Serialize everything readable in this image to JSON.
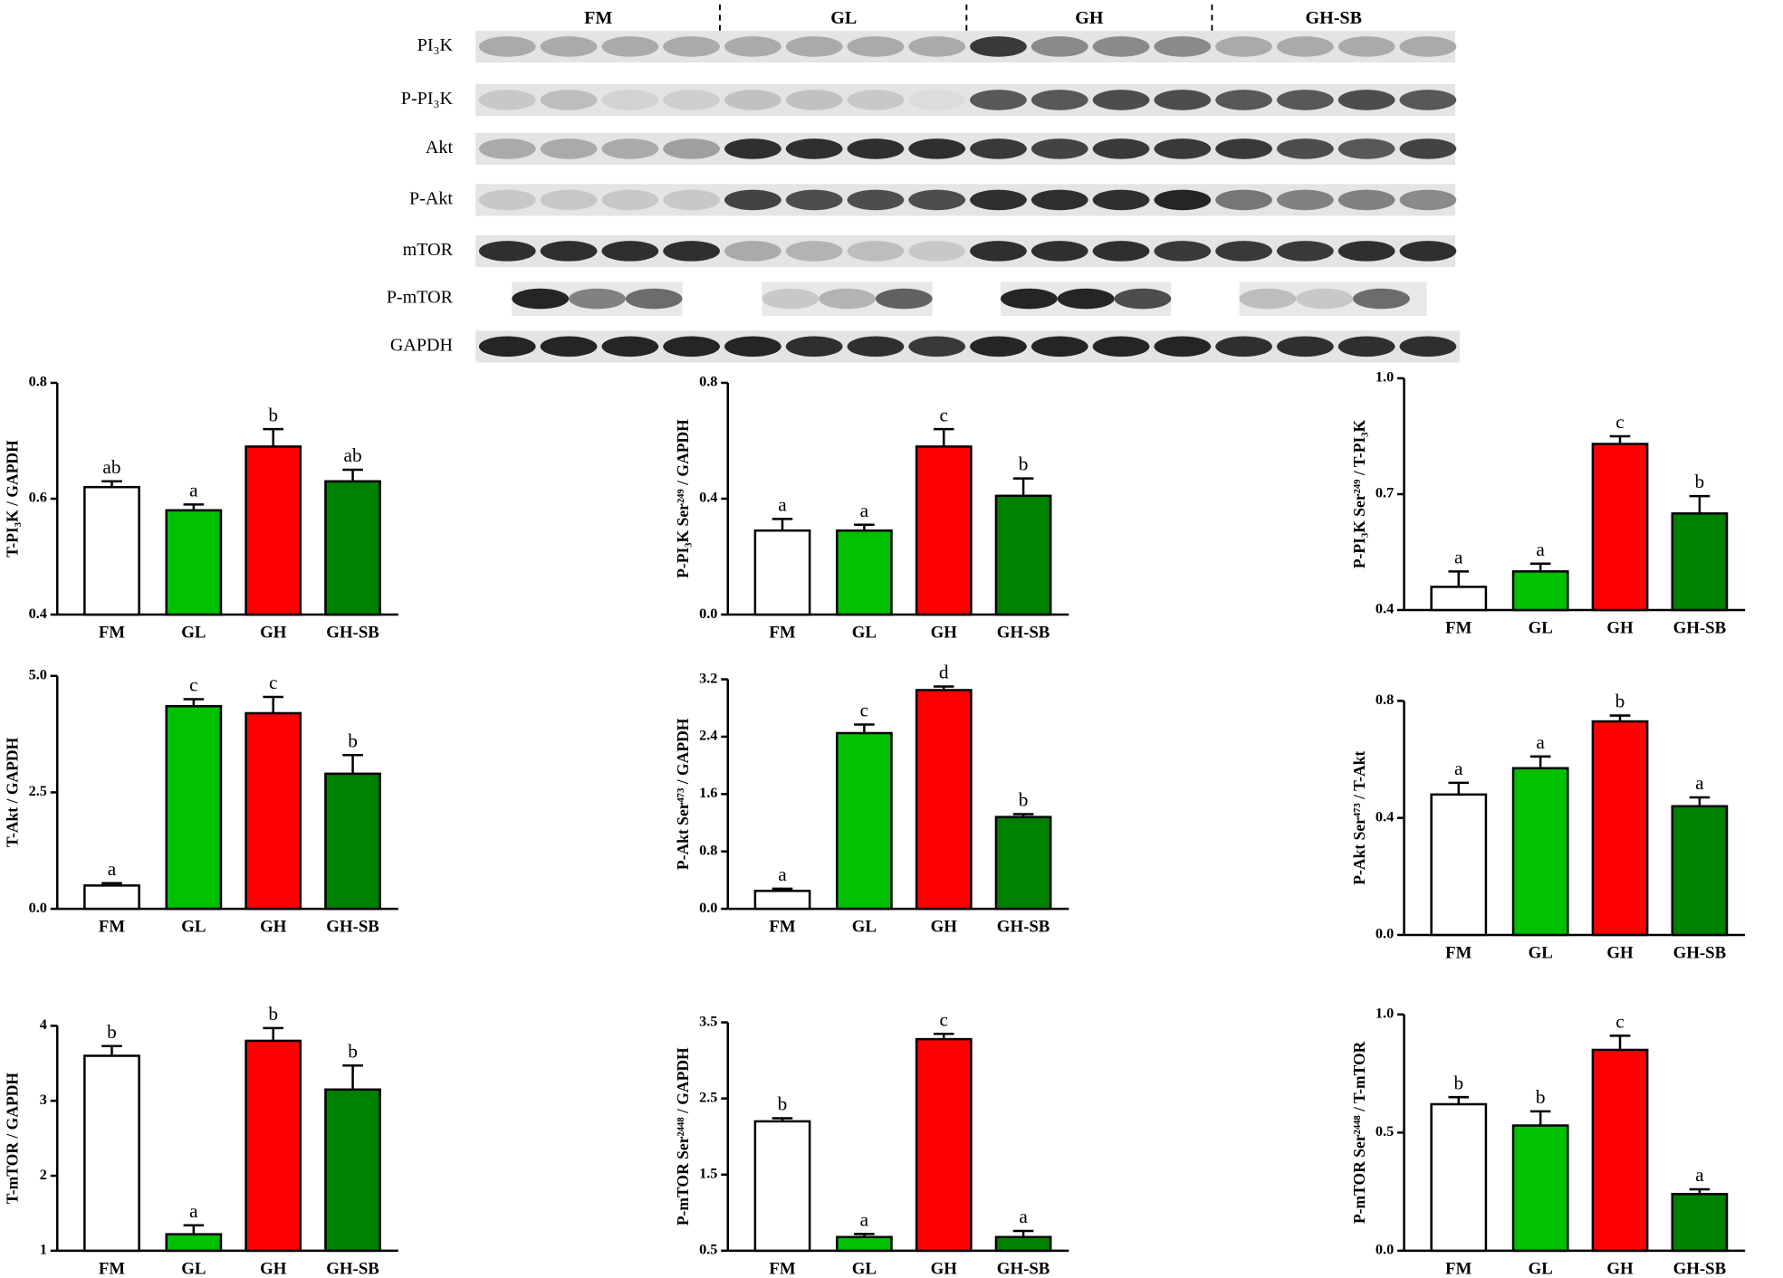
{
  "blot": {
    "groups": [
      "FM",
      "GL",
      "GH",
      "GH-SB"
    ],
    "rows": [
      "PI₃K",
      "P-PI₃K",
      "Akt",
      "P-Akt",
      "mTOR",
      "P-mTOR",
      "GAPDH"
    ]
  },
  "chart_data": [
    {
      "type": "bar",
      "ylabel": "T-PI₃K / GAPDH",
      "categories": [
        "FM",
        "GL",
        "GH",
        "GH-SB"
      ],
      "values": [
        0.62,
        0.58,
        0.69,
        0.63
      ],
      "errors": [
        0.01,
        0.01,
        0.03,
        0.02
      ],
      "annotations": [
        "ab",
        "a",
        "b",
        "ab"
      ],
      "colors": [
        "#ffffff",
        "#00c000",
        "#ff0000",
        "#008000"
      ],
      "ylim": [
        0.4,
        0.8
      ],
      "yticks": [
        0.4,
        0.6,
        0.8
      ]
    },
    {
      "type": "bar",
      "ylabel": "P-PI₃K Ser²⁴⁹ / GAPDH",
      "categories": [
        "FM",
        "GL",
        "GH",
        "GH-SB"
      ],
      "values": [
        0.29,
        0.29,
        0.58,
        0.41
      ],
      "errors": [
        0.04,
        0.02,
        0.06,
        0.06
      ],
      "annotations": [
        "a",
        "a",
        "c",
        "b"
      ],
      "colors": [
        "#ffffff",
        "#00c000",
        "#ff0000",
        "#008000"
      ],
      "ylim": [
        0,
        0.8
      ],
      "yticks": [
        {
          "value": 0,
          "label": "0.0"
        },
        0.4,
        0.8
      ]
    },
    {
      "type": "bar",
      "ylabel": "P-PI₃K Ser²⁴⁹ / T-PI₃K",
      "categories": [
        "FM",
        "GL",
        "GH",
        "GH-SB"
      ],
      "values": [
        0.46,
        0.5,
        0.83,
        0.65
      ],
      "errors": [
        0.04,
        0.02,
        0.02,
        0.045
      ],
      "annotations": [
        "a",
        "a",
        "c",
        "b"
      ],
      "colors": [
        "#ffffff",
        "#00c000",
        "#ff0000",
        "#008000"
      ],
      "ylim": [
        0.4,
        1.0
      ],
      "yticks": [
        0.4,
        0.7,
        {
          "value": 1,
          "label": "1.0"
        }
      ]
    },
    {
      "type": "bar",
      "ylabel": "T-Akt / GAPDH",
      "categories": [
        "FM",
        "GL",
        "GH",
        "GH-SB"
      ],
      "values": [
        0.5,
        4.35,
        4.2,
        2.9
      ],
      "errors": [
        0.05,
        0.15,
        0.35,
        0.4
      ],
      "annotations": [
        "a",
        "c",
        "c",
        "b"
      ],
      "colors": [
        "#ffffff",
        "#00c000",
        "#ff0000",
        "#008000"
      ],
      "ylim": [
        0,
        5
      ],
      "yticks": [
        {
          "value": 0,
          "label": "0.0"
        },
        2.5,
        {
          "value": 5,
          "label": "5.0"
        }
      ]
    },
    {
      "type": "bar",
      "ylabel": "P-Akt Ser⁴⁷³ / GAPDH",
      "categories": [
        "FM",
        "GL",
        "GH",
        "GH-SB"
      ],
      "values": [
        0.25,
        2.45,
        3.05,
        1.28
      ],
      "errors": [
        0.03,
        0.12,
        0.05,
        0.04
      ],
      "annotations": [
        "a",
        "c",
        "d",
        "b"
      ],
      "colors": [
        "#ffffff",
        "#00c000",
        "#ff0000",
        "#008000"
      ],
      "ylim": [
        0,
        3.2
      ],
      "yticks": [
        {
          "value": 0,
          "label": "0.0"
        },
        0.8,
        1.6,
        2.4,
        3.2
      ]
    },
    {
      "type": "bar",
      "ylabel": "P-Akt Ser⁴⁷³ / T-Akt",
      "categories": [
        "FM",
        "GL",
        "GH",
        "GH-SB"
      ],
      "values": [
        0.48,
        0.57,
        0.73,
        0.44
      ],
      "errors": [
        0.04,
        0.04,
        0.02,
        0.03
      ],
      "annotations": [
        "a",
        "a",
        "b",
        "a"
      ],
      "colors": [
        "#ffffff",
        "#00c000",
        "#ff0000",
        "#008000"
      ],
      "ylim": [
        0,
        0.8
      ],
      "yticks": [
        {
          "value": 0,
          "label": "0.0"
        },
        0.4,
        0.8
      ]
    },
    {
      "type": "bar",
      "ylabel": "T-mTOR / GAPDH",
      "categories": [
        "FM",
        "GL",
        "GH",
        "GH-SB"
      ],
      "values": [
        3.6,
        1.22,
        3.8,
        3.15
      ],
      "errors": [
        0.13,
        0.12,
        0.17,
        0.32
      ],
      "annotations": [
        "b",
        "a",
        "b",
        "b"
      ],
      "colors": [
        "#ffffff",
        "#00c000",
        "#ff0000",
        "#008000"
      ],
      "ylim": [
        1,
        4
      ],
      "yticks": [
        1,
        2,
        3,
        4
      ]
    },
    {
      "type": "bar",
      "ylabel": "P-mTOR Ser²⁴⁴⁸ / GAPDH",
      "categories": [
        "FM",
        "GL",
        "GH",
        "GH-SB"
      ],
      "values": [
        2.2,
        0.68,
        3.28,
        0.68
      ],
      "errors": [
        0.04,
        0.04,
        0.07,
        0.08
      ],
      "annotations": [
        "b",
        "a",
        "c",
        "a"
      ],
      "colors": [
        "#ffffff",
        "#00c000",
        "#ff0000",
        "#008000"
      ],
      "ylim": [
        0.5,
        3.5
      ],
      "yticks": [
        0.5,
        1.5,
        2.5,
        3.5
      ]
    },
    {
      "type": "bar",
      "ylabel": "P-mTOR Ser²⁴⁴⁸ / T-mTOR",
      "categories": [
        "FM",
        "GL",
        "GH",
        "GH-SB"
      ],
      "values": [
        0.62,
        0.53,
        0.85,
        0.24
      ],
      "errors": [
        0.03,
        0.06,
        0.06,
        0.02
      ],
      "annotations": [
        "b",
        "b",
        "c",
        "a"
      ],
      "colors": [
        "#ffffff",
        "#00c000",
        "#ff0000",
        "#008000"
      ],
      "ylim": [
        0,
        1
      ],
      "yticks": [
        {
          "value": 0,
          "label": "0.0"
        },
        0.5,
        {
          "value": 1,
          "label": "1.0"
        }
      ]
    }
  ]
}
